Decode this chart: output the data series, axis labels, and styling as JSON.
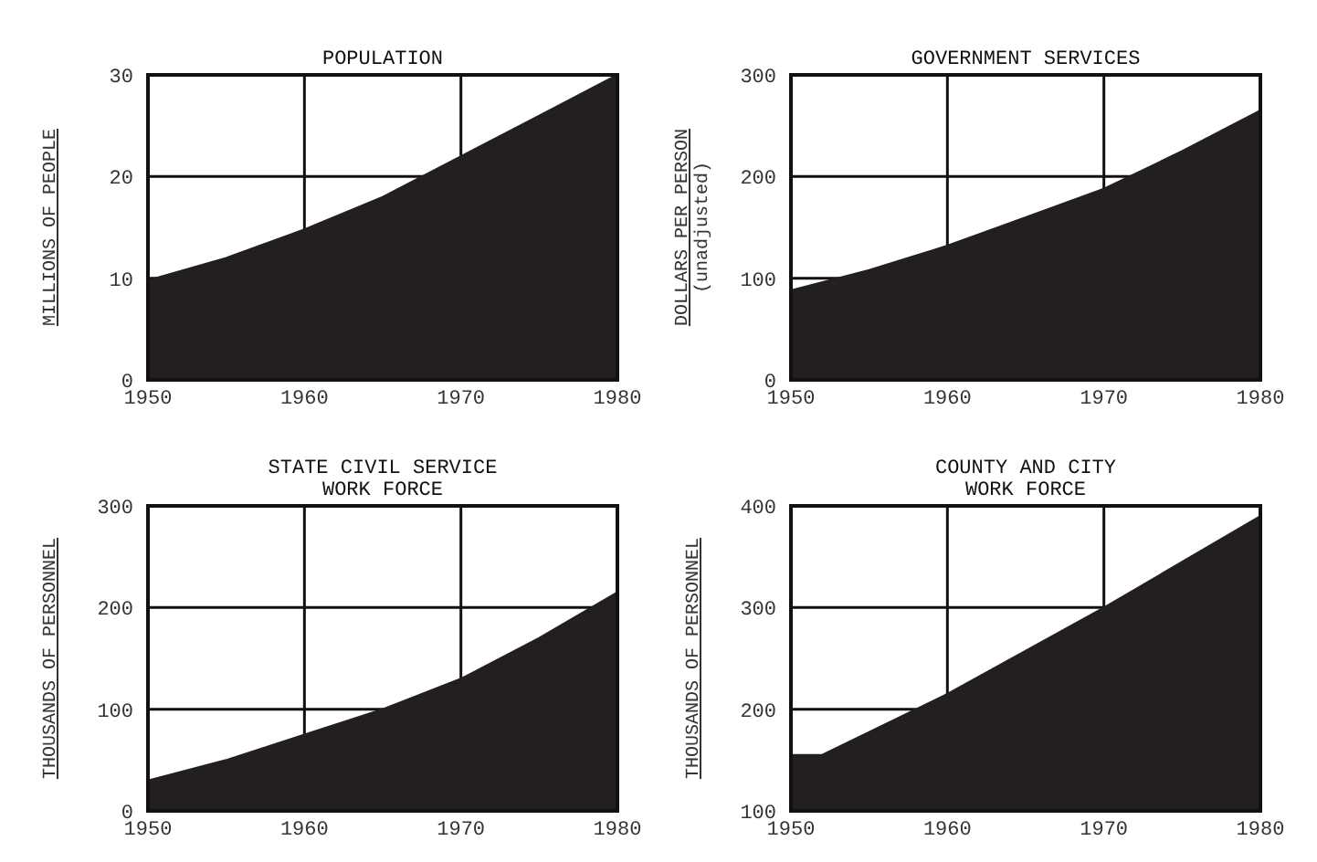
{
  "chart_data": [
    {
      "type": "area",
      "title": "POPULATION",
      "ylabel": "MILLIONS OF PEOPLE",
      "x": [
        1950,
        1955,
        1960,
        1965,
        1970,
        1975,
        1980
      ],
      "series": [
        {
          "color": "#231f20",
          "values": [
            9.8,
            12,
            14.8,
            18,
            22,
            26,
            30
          ]
        }
      ],
      "xlim": [
        1950,
        1980
      ],
      "xticks": [
        1950,
        1960,
        1970,
        1980
      ],
      "ylim": [
        0,
        30
      ],
      "yticks": [
        0,
        10,
        20,
        30
      ],
      "grid": true
    },
    {
      "type": "area",
      "title": "GOVERNMENT SERVICES",
      "ylabel": "DOLLARS PER PERSON\n(unadjusted)",
      "x": [
        1950,
        1955,
        1960,
        1965,
        1970,
        1975,
        1980
      ],
      "series": [
        {
          "color": "#231f20",
          "values": [
            88,
            108,
            132,
            160,
            188,
            225,
            265
          ]
        }
      ],
      "xlim": [
        1950,
        1980
      ],
      "xticks": [
        1950,
        1960,
        1970,
        1980
      ],
      "ylim": [
        0,
        300
      ],
      "yticks": [
        0,
        100,
        200,
        300
      ],
      "grid": true
    },
    {
      "type": "area",
      "title": "STATE CIVIL SERVICE\nWORK FORCE",
      "ylabel": "THOUSANDS OF PERSONNEL",
      "x": [
        1950,
        1955,
        1960,
        1965,
        1970,
        1975,
        1980
      ],
      "series": [
        {
          "color": "#231f20",
          "values": [
            30,
            50,
            75,
            100,
            130,
            170,
            215
          ]
        }
      ],
      "xlim": [
        1950,
        1980
      ],
      "xticks": [
        1950,
        1960,
        1970,
        1980
      ],
      "ylim": [
        0,
        300
      ],
      "yticks": [
        0,
        100,
        200,
        300
      ],
      "grid": true
    },
    {
      "type": "area",
      "title": "COUNTY AND CITY\nWORK FORCE",
      "ylabel": "THOUSANDS OF PERSONNEL",
      "x": [
        1950,
        1952,
        1960,
        1970,
        1980
      ],
      "series": [
        {
          "color": "#231f20",
          "values": [
            155,
            155,
            215,
            300,
            390
          ]
        }
      ],
      "xlim": [
        1950,
        1980
      ],
      "xticks": [
        1950,
        1960,
        1970,
        1980
      ],
      "ylim": [
        100,
        400
      ],
      "yticks": [
        100,
        200,
        300,
        400
      ],
      "grid": true
    }
  ]
}
